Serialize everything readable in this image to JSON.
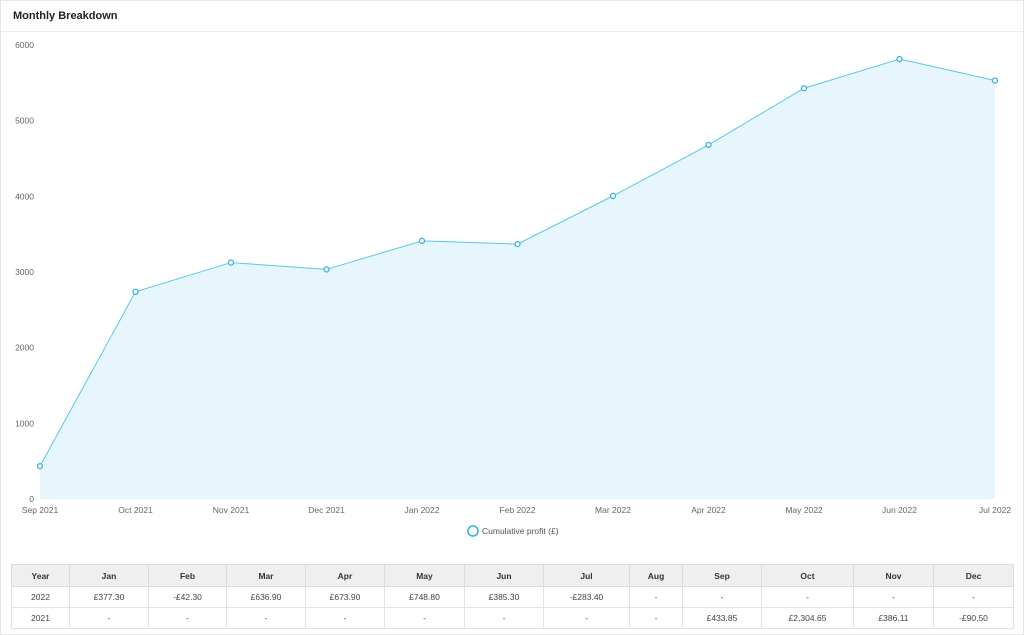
{
  "panel": {
    "title": "Monthly Breakdown"
  },
  "chart_data": {
    "type": "area",
    "x": [
      "Sep 2021",
      "Oct 2021",
      "Nov 2021",
      "Dec 2021",
      "Jan 2022",
      "Feb 2022",
      "Mar 2022",
      "Apr 2022",
      "May 2022",
      "Jun 2022",
      "Jul 2022"
    ],
    "series": [
      {
        "name": "Cumulative profit (£)",
        "values": [
          433.85,
          2738.5,
          3124.61,
          3034.11,
          3411.41,
          3369.11,
          4006.01,
          4679.91,
          5428.71,
          5814.01,
          5530.61
        ]
      }
    ],
    "ylim": [
      0,
      6000
    ],
    "yticks": [
      0,
      1000,
      2000,
      3000,
      4000,
      5000,
      6000
    ],
    "legend": "bottom-center",
    "grid": false,
    "colors": {
      "line": "#5ac8e6",
      "fill": "#e6f6fc",
      "marker": "#3bb3d8"
    }
  },
  "table": {
    "headers": [
      "Year",
      "Jan",
      "Feb",
      "Mar",
      "Apr",
      "May",
      "Jun",
      "Jul",
      "Aug",
      "Sep",
      "Oct",
      "Nov",
      "Dec"
    ],
    "rows": [
      [
        "2022",
        "£377.30",
        "-£42.30",
        "£636.90",
        "£673.90",
        "£748.80",
        "£385.30",
        "-£283.40",
        "-",
        "-",
        "-",
        "-",
        "-"
      ],
      [
        "2021",
        "-",
        "-",
        "-",
        "-",
        "-",
        "-",
        "-",
        "-",
        "£433.85",
        "£2,304.65",
        "£386.11",
        "-£90.50"
      ]
    ]
  }
}
